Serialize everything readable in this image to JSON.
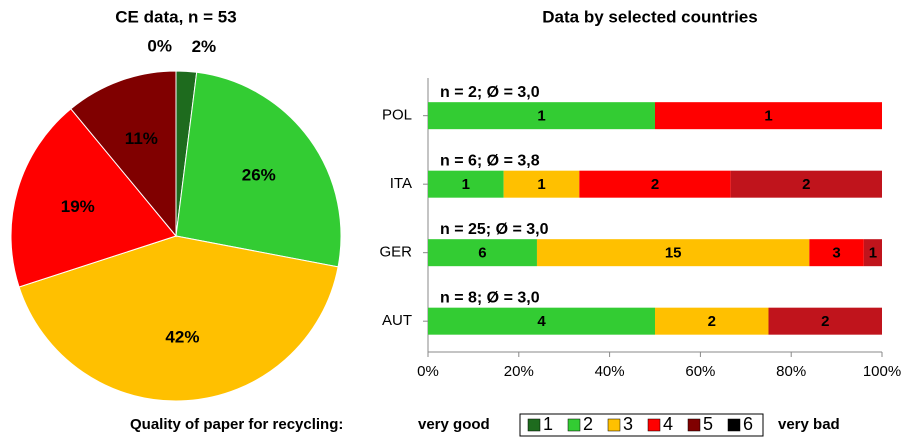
{
  "chart_data": [
    {
      "type": "pie",
      "title": "CE data, n = 53",
      "categories": [
        "1",
        "2",
        "3",
        "4",
        "5",
        "6"
      ],
      "values": [
        2,
        26,
        42,
        19,
        11,
        0
      ],
      "value_labels": [
        "2%",
        "26%",
        "42%",
        "19%",
        "11%",
        "0%"
      ],
      "colors": [
        "#1e6b1e",
        "#33cc33",
        "#ffc000",
        "#ff0000",
        "#800000",
        "#000000"
      ]
    },
    {
      "type": "bar",
      "orientation": "horizontal",
      "stacking": "percent",
      "title": "Data by selected countries",
      "categories": [
        "POL",
        "ITA",
        "GER",
        "AUT"
      ],
      "annotations": [
        "n = 2; Ø = 3,0",
        "n = 6; Ø = 3,8",
        "n = 25; Ø = 3,0",
        "n = 8; Ø = 3,0"
      ],
      "series": [
        {
          "color": "#33cc33",
          "values": [
            1,
            1,
            6,
            4
          ]
        },
        {
          "color": "#ffc000",
          "values": [
            0,
            1,
            15,
            2
          ]
        },
        {
          "color": "#ff0000",
          "values": [
            1,
            2,
            3,
            0
          ]
        },
        {
          "color": "#c0141c",
          "values": [
            0,
            2,
            1,
            2
          ]
        }
      ],
      "xlim": [
        0,
        100
      ],
      "xticks": [
        {
          "value": 0,
          "label": "0%"
        },
        {
          "value": 20,
          "label": "20%"
        },
        {
          "value": 40,
          "label": "40%"
        },
        {
          "value": 60,
          "label": "60%"
        },
        {
          "value": 80,
          "label": "80%"
        },
        {
          "value": 100,
          "label": "100%"
        }
      ]
    }
  ],
  "legend": {
    "title": "Quality of paper for recycling:",
    "left": "very good",
    "right": "very bad"
  }
}
